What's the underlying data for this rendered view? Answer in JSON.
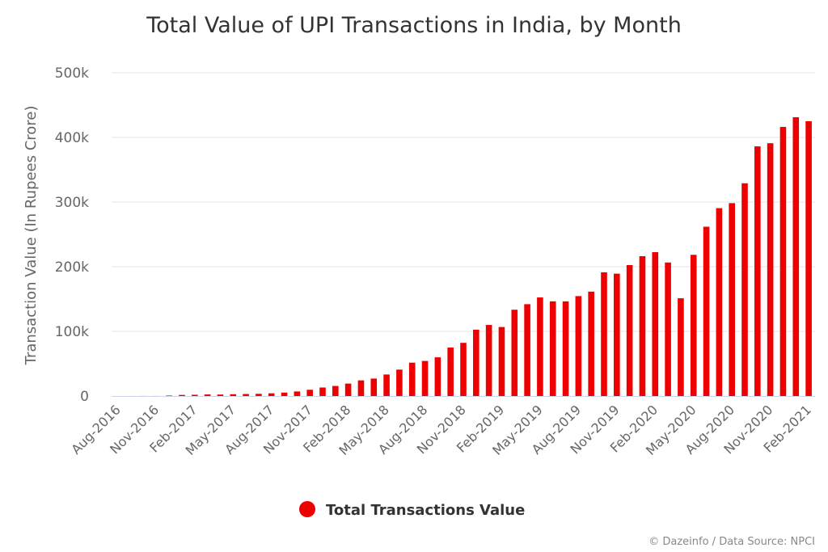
{
  "chart_data": {
    "type": "bar",
    "title": "Total Value of UPI Transactions in India, by Month",
    "ylabel": "Transaction Value (In Rupees Crore)",
    "xlabel": "",
    "ylim": [
      0,
      500000
    ],
    "yticks": [
      "0",
      "100k",
      "200k",
      "300k",
      "400k",
      "500k"
    ],
    "ytick_values": [
      0,
      100000,
      200000,
      300000,
      400000,
      500000
    ],
    "xtick_labels": [
      "Aug-2016",
      "Nov-2016",
      "Feb-2017",
      "May-2017",
      "Aug-2017",
      "Nov-2017",
      "Feb-2018",
      "May-2018",
      "Aug-2018",
      "Nov-2018",
      "Feb-2019",
      "May-2019",
      "Aug-2019",
      "Nov-2019",
      "Feb-2020",
      "May-2020",
      "Aug-2020",
      "Nov-2020",
      "Feb-2021"
    ],
    "grid": true,
    "legend_position": "bottom-center",
    "credits": "© Dazeinfo / Data Source: NPCI",
    "categories": [
      "Aug-2016",
      "Sep-2016",
      "Oct-2016",
      "Nov-2016",
      "Dec-2016",
      "Jan-2017",
      "Feb-2017",
      "Mar-2017",
      "Apr-2017",
      "May-2017",
      "Jun-2017",
      "Jul-2017",
      "Aug-2017",
      "Sep-2017",
      "Oct-2017",
      "Nov-2017",
      "Dec-2017",
      "Jan-2018",
      "Feb-2018",
      "Mar-2018",
      "Apr-2018",
      "May-2018",
      "Jun-2018",
      "Jul-2018",
      "Aug-2018",
      "Sep-2018",
      "Oct-2018",
      "Nov-2018",
      "Dec-2018",
      "Jan-2019",
      "Feb-2019",
      "Mar-2019",
      "Apr-2019",
      "May-2019",
      "Jun-2019",
      "Jul-2019",
      "Aug-2019",
      "Sep-2019",
      "Oct-2019",
      "Nov-2019",
      "Dec-2019",
      "Jan-2020",
      "Feb-2020",
      "Mar-2020",
      "Apr-2020",
      "May-2020",
      "Jun-2020",
      "Jul-2020",
      "Aug-2020",
      "Sep-2020",
      "Oct-2020",
      "Nov-2020",
      "Dec-2020",
      "Jan-2021",
      "Feb-2021"
    ],
    "series": [
      {
        "name": "Total Transactions Value",
        "color": "#ee0000",
        "values": [
          3,
          32,
          101,
          90,
          707,
          1696,
          1937,
          2425,
          2271,
          2797,
          3098,
          3411,
          4157,
          5325,
          7058,
          9669,
          13144,
          15571,
          19234,
          24172,
          27021,
          33289,
          40834,
          51568,
          54212,
          59835,
          74978,
          82232,
          102595,
          109932,
          106737,
          133461,
          142034,
          152449,
          146386,
          146387,
          154507,
          161456,
          191359,
          189229,
          202521,
          216242,
          222517,
          206462,
          151141,
          218392,
          261835,
          290538,
          298308,
          329027,
          386107,
          390999,
          416176,
          431182,
          425062
        ]
      }
    ]
  },
  "legend": {
    "label": "Total Transactions Value",
    "color": "#ee0000"
  }
}
